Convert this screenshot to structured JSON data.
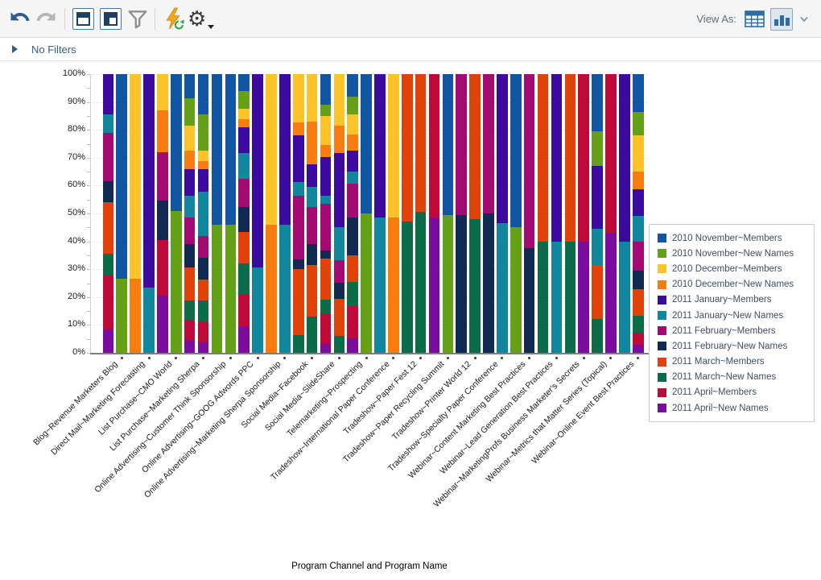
{
  "toolbar": {
    "view_as_label": "View As:"
  },
  "filter_bar": {
    "label": "No Filters"
  },
  "chart_data": {
    "type": "bar",
    "stacking": "percent",
    "title": "",
    "xlabel": "Program Channel and Program Name",
    "ylabel": "",
    "ylim": [
      0,
      100
    ],
    "grid": true,
    "legend_position": "right",
    "yticks": [
      "100%",
      "90%",
      "80%",
      "70%",
      "60%",
      "50%",
      "40%",
      "30%",
      "20%",
      "10%",
      "0%"
    ],
    "series": [
      {
        "name": "2010 November~Members",
        "color": "#1255A2"
      },
      {
        "name": "2010 November~New Names",
        "color": "#64A018"
      },
      {
        "name": "2010 December~Members",
        "color": "#FDC32B"
      },
      {
        "name": "2010 December~New Names",
        "color": "#F87D10"
      },
      {
        "name": "2011 January~Members",
        "color": "#3A0B9E"
      },
      {
        "name": "2011 January~New Names",
        "color": "#12869C"
      },
      {
        "name": "2011 February~Members",
        "color": "#A40B72"
      },
      {
        "name": "2011 February~New Names",
        "color": "#102A52"
      },
      {
        "name": "2011 March~Members",
        "color": "#DF4309"
      },
      {
        "name": "2011 March~New Names",
        "color": "#0C6B48"
      },
      {
        "name": "2011 April~Members",
        "color": "#BE0A38"
      },
      {
        "name": "2011 April~New Names",
        "color": "#7A0C9E"
      }
    ],
    "categories": [
      "Blog~Revenue Marketers Blog",
      "Direct Mail~Marketing Forecasting",
      "List Purchase~CMO World",
      "List Purchase~Marketing Sherpa",
      "Online Advertising~Customer Think Sponsorship",
      "Online Advertising~GOOG Adwords PPC",
      "Online Advertising~Marketing Sherpa Sponsorship",
      "Social Media~Facebook",
      "Social Media~SlideShare",
      "Telemarketing~Prospecting",
      "Tradeshow~International Paper Conference",
      "Tradeshow~Paper Fest 12",
      "Tradeshow~Paper Recycling Summit",
      "Tradeshow~Printer World 12",
      "Tradeshow~Specialty Paper Conference",
      "Webinar~Content Marketing Best Practices",
      "Webinar~Lead Generation Best Practices",
      "Webinar~MarketingProfs Business Marketer's Secrets",
      "Webinar~Metrics that Matter Series (Topical)",
      "Webinar~Online Event Best Practices"
    ],
    "bars": [
      {
        "label": "Blog~Revenue Marketers Blog",
        "segments": [
          [
            4,
            14.5
          ],
          [
            5,
            6.5
          ],
          [
            6,
            17.5
          ],
          [
            7,
            7.5
          ],
          [
            8,
            18.5
          ],
          [
            9,
            7.5
          ],
          [
            10,
            19.5
          ],
          [
            11,
            8.5
          ]
        ]
      },
      {
        "label": ".",
        "segments": [
          [
            0,
            73.5
          ],
          [
            1,
            26.5
          ]
        ]
      },
      {
        "label": "Direct Mail~Marketing Forecasting",
        "segments": [
          [
            2,
            73.5
          ],
          [
            3,
            26.5
          ]
        ]
      },
      {
        "label": ".",
        "segments": [
          [
            4,
            76.5
          ],
          [
            5,
            23.5
          ]
        ]
      },
      {
        "label": "List Purchase~CMO World",
        "segments": [
          [
            2,
            13
          ],
          [
            3,
            15
          ],
          [
            6,
            17.5
          ],
          [
            7,
            14
          ],
          [
            10,
            20
          ],
          [
            11,
            20.5
          ]
        ]
      },
      {
        "label": ".",
        "segments": [
          [
            0,
            49
          ],
          [
            1,
            51
          ]
        ]
      },
      {
        "label": "List Purchase~Marketing Sherpa",
        "segments": [
          [
            0,
            8.6
          ],
          [
            1,
            9.9
          ],
          [
            2,
            9.1
          ],
          [
            3,
            6.5
          ],
          [
            4,
            9.6
          ],
          [
            5,
            7.7
          ],
          [
            6,
            9.5
          ],
          [
            7,
            8.4
          ],
          [
            8,
            12
          ],
          [
            9,
            7.2
          ],
          [
            10,
            6.8
          ],
          [
            11,
            4.7
          ]
        ]
      },
      {
        "label": ".",
        "segments": [
          [
            0,
            14.4
          ],
          [
            1,
            13
          ],
          [
            2,
            3.8
          ],
          [
            3,
            2.9
          ],
          [
            4,
            8.2
          ],
          [
            5,
            15.9
          ],
          [
            6,
            7.7
          ],
          [
            7,
            7.7
          ],
          [
            8,
            7.7
          ],
          [
            9,
            7.7
          ],
          [
            10,
            7.2
          ],
          [
            11,
            3.8
          ]
        ]
      },
      {
        "label": "Online Advertising~Customer Think Sponsorship",
        "segments": [
          [
            0,
            54
          ],
          [
            1,
            46
          ]
        ]
      },
      {
        "label": ".",
        "segments": [
          [
            0,
            54
          ],
          [
            1,
            46
          ]
        ]
      },
      {
        "label": "Online Advertising~GOOG Adwords PPC",
        "segments": [
          [
            0,
            6.2
          ],
          [
            1,
            6.2
          ],
          [
            2,
            3.9
          ],
          [
            3,
            2.9
          ],
          [
            4,
            9.1
          ],
          [
            5,
            9.2
          ],
          [
            6,
            10.1
          ],
          [
            7,
            9.1
          ],
          [
            8,
            11.1
          ],
          [
            9,
            11.1
          ],
          [
            10,
            11.6
          ],
          [
            11,
            9.5
          ]
        ]
      },
      {
        "label": ".",
        "segments": [
          [
            4,
            69.5
          ],
          [
            5,
            30.5
          ]
        ]
      },
      {
        "label": "Online Advertising~Marketing Sherpa Sponsorship",
        "segments": [
          [
            2,
            54
          ],
          [
            3,
            46
          ]
        ]
      },
      {
        "label": ".",
        "segments": [
          [
            4,
            54
          ],
          [
            5,
            46
          ]
        ]
      },
      {
        "label": "Social Media~Facebook",
        "segments": [
          [
            2,
            17.2
          ],
          [
            3,
            4.8
          ],
          [
            4,
            16.6
          ],
          [
            5,
            5.1
          ],
          [
            6,
            22.7
          ],
          [
            7,
            3.6
          ],
          [
            8,
            23.6
          ],
          [
            9,
            6.4
          ]
        ]
      },
      {
        "label": ".",
        "segments": [
          [
            2,
            17
          ],
          [
            3,
            15.3
          ],
          [
            4,
            8.3
          ],
          [
            5,
            7.2
          ],
          [
            6,
            13.3
          ],
          [
            7,
            7.4
          ],
          [
            8,
            18.6
          ],
          [
            9,
            12.9
          ]
        ]
      },
      {
        "label": "Social Media~SlideShare",
        "segments": [
          [
            0,
            11
          ],
          [
            1,
            4
          ],
          [
            2,
            10.4
          ],
          [
            3,
            4.4
          ],
          [
            4,
            13.9
          ],
          [
            5,
            2.9
          ],
          [
            6,
            16.6
          ],
          [
            7,
            2.9
          ],
          [
            8,
            14.7
          ],
          [
            9,
            5.3
          ],
          [
            10,
            10.6
          ],
          [
            11,
            3.3
          ]
        ]
      },
      {
        "label": ".",
        "segments": [
          [
            2,
            18.5
          ],
          [
            3,
            9.8
          ],
          [
            4,
            26.7
          ],
          [
            5,
            11.9
          ],
          [
            6,
            7.9
          ],
          [
            7,
            5.8
          ],
          [
            8,
            13.2
          ],
          [
            9,
            6.2
          ]
        ]
      },
      {
        "label": "Telemarketing~Prospecting",
        "segments": [
          [
            0,
            8.1
          ],
          [
            1,
            6.3
          ],
          [
            2,
            7.2
          ],
          [
            3,
            5.8
          ],
          [
            4,
            7.7
          ],
          [
            5,
            4.3
          ],
          [
            6,
            12
          ],
          [
            7,
            13.5
          ],
          [
            8,
            9.7
          ],
          [
            9,
            8.6
          ],
          [
            10,
            11.6
          ],
          [
            11,
            5.2
          ]
        ]
      },
      {
        "label": ".",
        "segments": [
          [
            0,
            50
          ],
          [
            1,
            50
          ]
        ]
      },
      {
        "label": "Tradeshow~International Paper Conference",
        "segments": [
          [
            4,
            51.5
          ],
          [
            5,
            48.5
          ]
        ]
      },
      {
        "label": ".",
        "segments": [
          [
            2,
            51.5
          ],
          [
            3,
            48.5
          ]
        ]
      },
      {
        "label": "Tradeshow~Paper Fest 12",
        "segments": [
          [
            8,
            53
          ],
          [
            9,
            47
          ]
        ]
      },
      {
        "label": ".",
        "segments": [
          [
            8,
            49.5
          ],
          [
            9,
            50.5
          ]
        ]
      },
      {
        "label": "Tradeshow~Paper Recycling Summit",
        "segments": [
          [
            10,
            51.5
          ],
          [
            11,
            48.5
          ]
        ]
      },
      {
        "label": ".",
        "segments": [
          [
            0,
            50.5
          ],
          [
            1,
            49.5
          ]
        ]
      },
      {
        "label": "Tradeshow~Printer World 12",
        "segments": [
          [
            6,
            50.5
          ],
          [
            7,
            49.5
          ]
        ]
      },
      {
        "label": ".",
        "segments": [
          [
            8,
            52
          ],
          [
            9,
            48
          ]
        ]
      },
      {
        "label": "Tradeshow~Specialty Paper Conference",
        "segments": [
          [
            6,
            50
          ],
          [
            7,
            50
          ]
        ]
      },
      {
        "label": ".",
        "segments": [
          [
            4,
            53.5
          ],
          [
            5,
            46.5
          ]
        ]
      },
      {
        "label": "Webinar~Content Marketing Best Practices",
        "segments": [
          [
            0,
            55
          ],
          [
            1,
            45
          ]
        ]
      },
      {
        "label": ".",
        "segments": [
          [
            6,
            62.5
          ],
          [
            7,
            37.5
          ]
        ]
      },
      {
        "label": "Webinar~Lead Generation Best Practices",
        "segments": [
          [
            8,
            60
          ],
          [
            9,
            40
          ]
        ]
      },
      {
        "label": ".",
        "segments": [
          [
            4,
            60
          ],
          [
            5,
            40
          ]
        ]
      },
      {
        "label": "Webinar~MarketingProfs Business Marketer's Secrets",
        "segments": [
          [
            8,
            60
          ],
          [
            9,
            40
          ]
        ]
      },
      {
        "label": ".",
        "segments": [
          [
            10,
            60
          ],
          [
            11,
            40
          ]
        ]
      },
      {
        "label": "Webinar~Metrics that Matter Series (Topical)",
        "segments": [
          [
            0,
            20.5
          ],
          [
            1,
            12.5
          ],
          [
            4,
            22.5
          ],
          [
            5,
            13
          ],
          [
            8,
            19.5
          ],
          [
            9,
            12
          ]
        ]
      },
      {
        "label": ".",
        "segments": [
          [
            10,
            57
          ],
          [
            11,
            43
          ]
        ]
      },
      {
        "label": "Webinar~Online Event Best Practices",
        "segments": [
          [
            4,
            60
          ],
          [
            5,
            40
          ]
        ]
      },
      {
        "label": ".",
        "segments": [
          [
            0,
            13.7
          ],
          [
            1,
            8.4
          ],
          [
            2,
            12.8
          ],
          [
            3,
            6.4
          ],
          [
            4,
            9.7
          ],
          [
            5,
            9.1
          ],
          [
            6,
            10.4
          ],
          [
            7,
            6.8
          ],
          [
            8,
            9.3
          ],
          [
            9,
            6.3
          ],
          [
            10,
            4.3
          ],
          [
            11,
            2.8
          ]
        ]
      }
    ]
  }
}
